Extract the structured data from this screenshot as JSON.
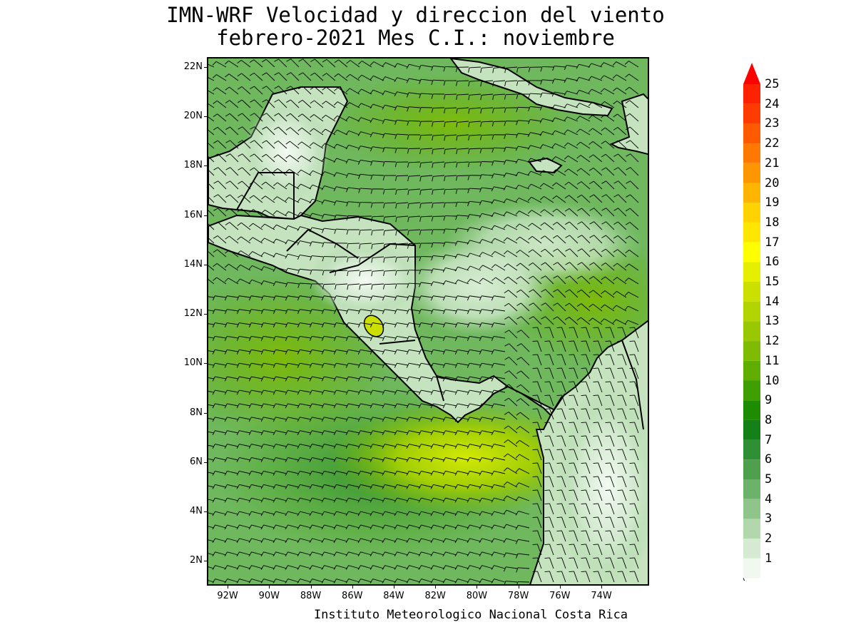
{
  "title": {
    "line1": "IMN-WRF Velocidad y direccion del viento",
    "line2": "febrero-2021 Mes C.I.: noviembre"
  },
  "footer": "Instituto Meteorologico Nacional Costa Rica",
  "axes": {
    "lat_labels": [
      "22N",
      "20N",
      "18N",
      "16N",
      "14N",
      "12N",
      "10N",
      "8N",
      "6N",
      "4N",
      "2N"
    ],
    "lat_values": [
      22,
      20,
      18,
      16,
      14,
      12,
      10,
      8,
      6,
      4,
      2
    ],
    "lon_labels": [
      "92W",
      "90W",
      "88W",
      "86W",
      "84W",
      "82W",
      "80W",
      "78W",
      "76W",
      "74W"
    ],
    "lon_values": [
      -92,
      -90,
      -88,
      -86,
      -84,
      -82,
      -80,
      -78,
      -76,
      -74
    ],
    "lat_range": [
      1,
      22.4
    ],
    "lon_range": [
      -93.0,
      -71.7
    ]
  },
  "colorbar": {
    "labels": [
      "25",
      "24",
      "23",
      "22",
      "21",
      "20",
      "19",
      "18",
      "17",
      "16",
      "15",
      "14",
      "13",
      "12",
      "11",
      "10",
      "9",
      "8",
      "7",
      "6",
      "5",
      "4",
      "3",
      "2",
      "1"
    ],
    "colors": [
      "#ff2200",
      "#ff3c00",
      "#ff5a00",
      "#ff7800",
      "#ff9600",
      "#ffb400",
      "#ffd200",
      "#ffe600",
      "#ffff00",
      "#e6ef00",
      "#cce000",
      "#b2d400",
      "#99c800",
      "#7fbb00",
      "#5fae00",
      "#3f9f00",
      "#1e8c00",
      "#138018",
      "#2e8f34",
      "#4ea04e",
      "#6db26a",
      "#8fc48a",
      "#b2d7ad",
      "#d4ead1",
      "#f0f8ef"
    ],
    "top_arrow_color": "#ff0000",
    "has_low_triangle": true
  },
  "legend_colors": {
    "ocean_base": "#6fb85e",
    "land_base": "#c8e6c2",
    "coast": "#000000",
    "barb": "#000000"
  }
}
